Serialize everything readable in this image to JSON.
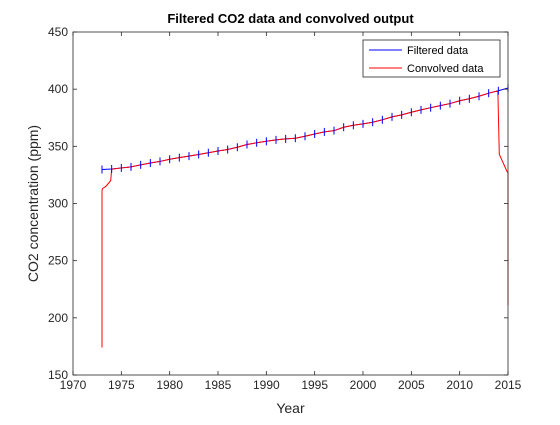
{
  "chart_data": {
    "type": "line",
    "title": "Filtered CO2 data and convolved output",
    "xlabel": "Year",
    "ylabel": "CO2 concentration (ppm)",
    "xlim": [
      1970,
      2015
    ],
    "ylim": [
      150,
      450
    ],
    "xticks": [
      1970,
      1975,
      1980,
      1985,
      1990,
      1995,
      2000,
      2005,
      2010,
      2015
    ],
    "yticks": [
      150,
      200,
      250,
      300,
      350,
      400,
      450
    ],
    "grid": false,
    "legend_position": "top-right",
    "series": [
      {
        "name": "Filtered data",
        "color": "#0000ff",
        "x": [
          1973,
          1974,
          1975,
          1976,
          1977,
          1978,
          1979,
          1980,
          1981,
          1982,
          1983,
          1984,
          1985,
          1986,
          1987,
          1988,
          1989,
          1990,
          1991,
          1992,
          1993,
          1994,
          1995,
          1996,
          1997,
          1998,
          1999,
          2000,
          2001,
          2002,
          2003,
          2004,
          2005,
          2006,
          2007,
          2008,
          2009,
          2010,
          2011,
          2012,
          2013,
          2014,
          2015
        ],
        "y": [
          329.7,
          330.2,
          331.1,
          332.0,
          333.8,
          335.4,
          336.8,
          338.7,
          340.1,
          341.4,
          342.9,
          344.4,
          345.9,
          347.2,
          349.2,
          351.6,
          353.1,
          354.4,
          355.6,
          356.5,
          357.1,
          358.8,
          360.8,
          362.6,
          363.7,
          366.7,
          368.4,
          369.6,
          371.1,
          373.2,
          375.8,
          377.5,
          379.8,
          381.9,
          383.8,
          385.6,
          387.4,
          389.9,
          391.6,
          393.8,
          396.5,
          398.6,
          401.0
        ]
      },
      {
        "name": "Convolved data",
        "color": "#ff0000",
        "x": [
          1973,
          1973,
          1973.05,
          1973.4,
          1973.9,
          1974,
          1975,
          1976,
          1977,
          1978,
          1979,
          1980,
          1981,
          1982,
          1983,
          1984,
          1985,
          1986,
          1987,
          1988,
          1989,
          1990,
          1991,
          1992,
          1993,
          1994,
          1995,
          1996,
          1997,
          1998,
          1999,
          2000,
          2001,
          2002,
          2003,
          2004,
          2005,
          2006,
          2007,
          2008,
          2009,
          2010,
          2011,
          2012,
          2013,
          2013.95,
          2014.1,
          2014.9,
          2015,
          2015
        ],
        "y": [
          174,
          311,
          313,
          315,
          320,
          330,
          331.1,
          332.0,
          333.8,
          335.4,
          336.8,
          338.7,
          340.1,
          341.4,
          342.9,
          344.4,
          345.9,
          347.2,
          349.2,
          351.6,
          353.1,
          354.4,
          355.6,
          356.5,
          357.1,
          358.8,
          360.8,
          362.6,
          363.7,
          366.7,
          368.4,
          369.6,
          371.1,
          373.2,
          375.8,
          377.5,
          379.8,
          381.9,
          383.8,
          385.6,
          387.4,
          389.9,
          391.6,
          393.8,
          396.5,
          398.5,
          343,
          328,
          327,
          211
        ]
      }
    ]
  }
}
